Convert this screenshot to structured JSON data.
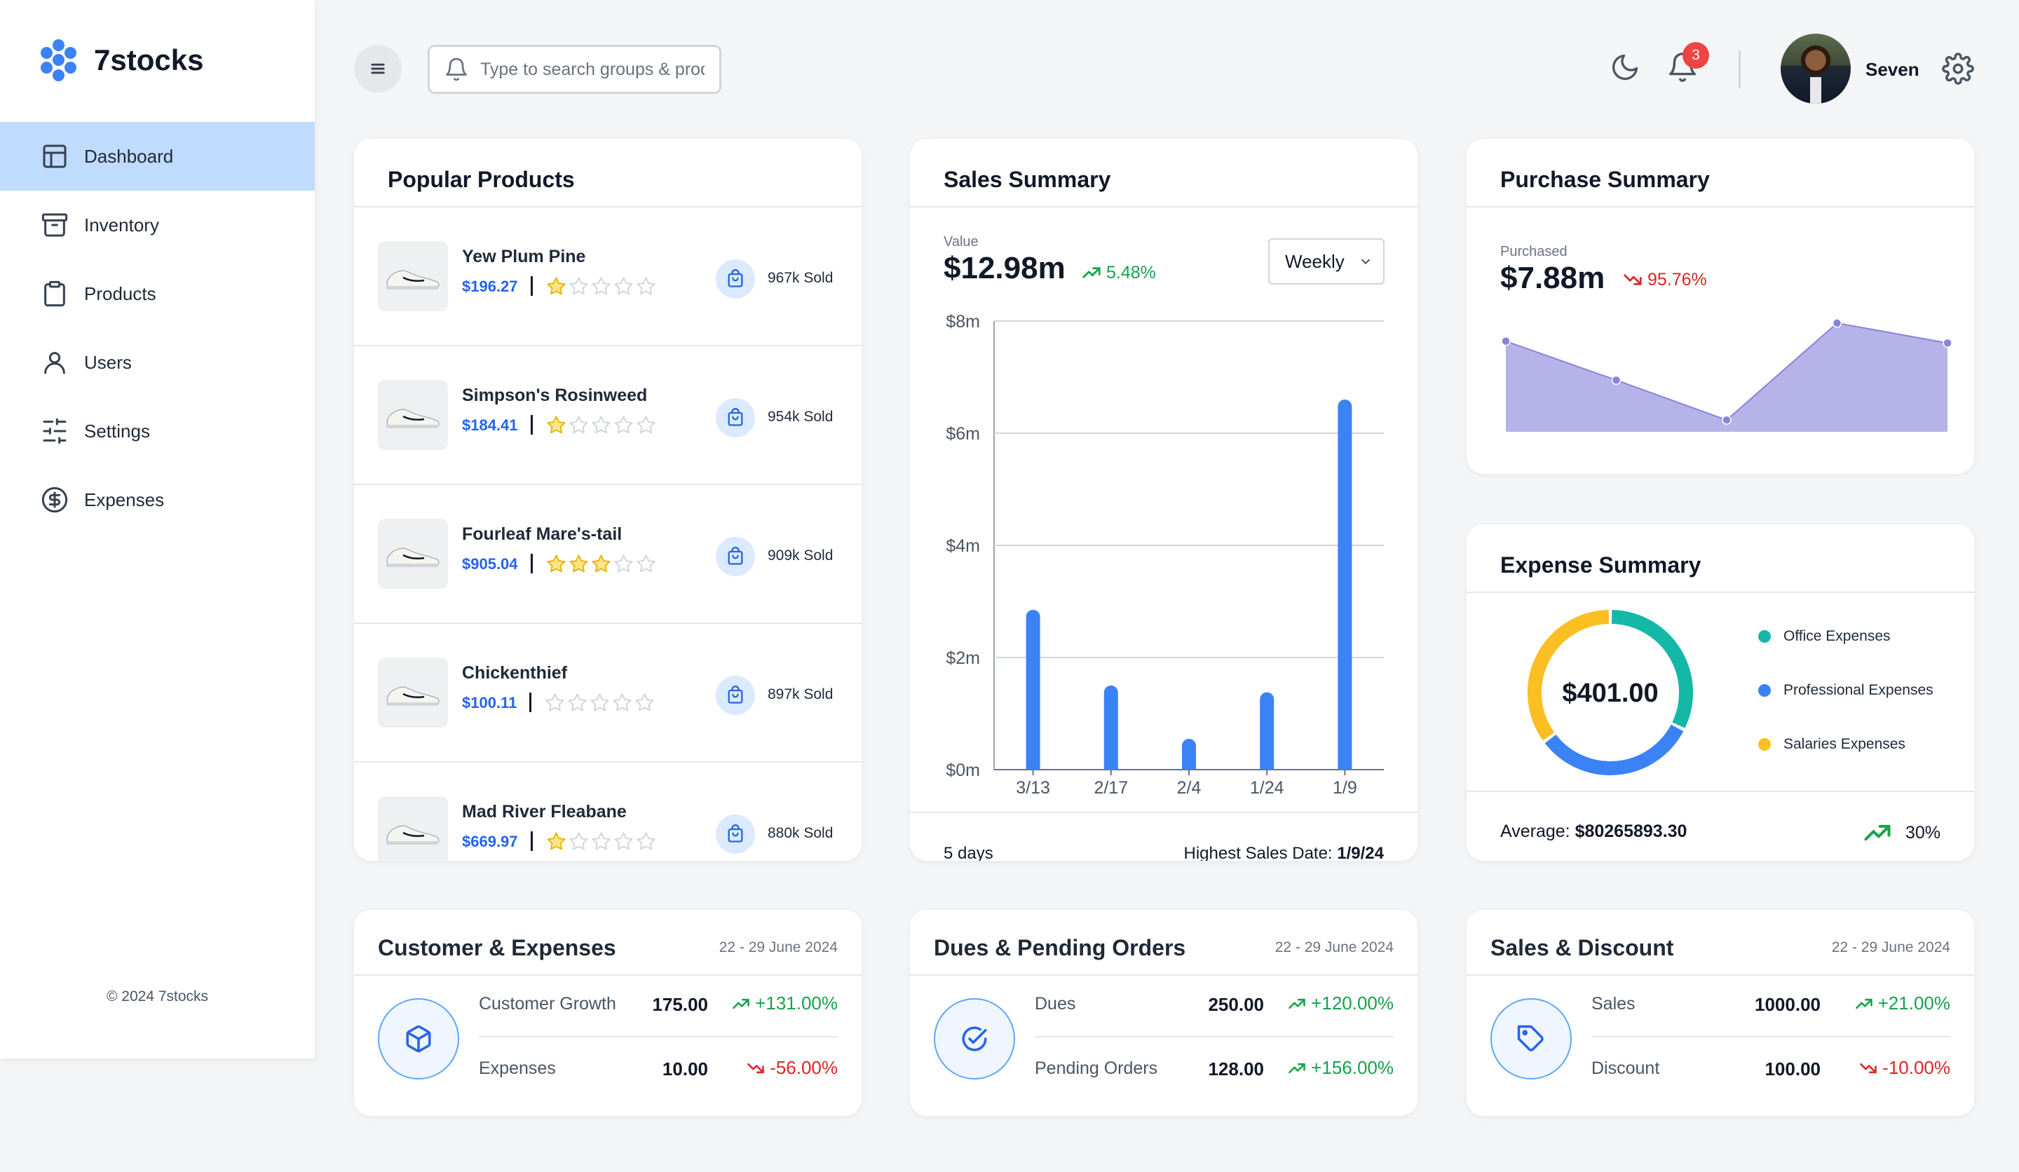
{
  "app": {
    "name": "7stocks",
    "copyright": "© 2024 7stocks"
  },
  "sidebar": {
    "items": [
      {
        "label": "Dashboard",
        "icon": "layout-icon",
        "active": true
      },
      {
        "label": "Inventory",
        "icon": "archive-icon"
      },
      {
        "label": "Products",
        "icon": "clipboard-icon"
      },
      {
        "label": "Users",
        "icon": "user-icon"
      },
      {
        "label": "Settings",
        "icon": "sliders-icon"
      },
      {
        "label": "Expenses",
        "icon": "dollar-circle-icon"
      }
    ]
  },
  "topbar": {
    "search_placeholder": "Type to search groups & products",
    "notification_count": "3",
    "user_name": "Seven"
  },
  "popular_products": {
    "title": "Popular Products",
    "items": [
      {
        "name": "Yew Plum Pine",
        "price": "$196.27",
        "rating": 1,
        "sold": "967k Sold"
      },
      {
        "name": "Simpson's Rosinweed",
        "price": "$184.41",
        "rating": 1,
        "sold": "954k Sold"
      },
      {
        "name": "Fourleaf Mare's-tail",
        "price": "$905.04",
        "rating": 3,
        "sold": "909k Sold"
      },
      {
        "name": "Chickenthief",
        "price": "$100.11",
        "rating": 0,
        "sold": "897k Sold"
      },
      {
        "name": "Mad River Fleabane",
        "price": "$669.97",
        "rating": 1,
        "sold": "880k Sold"
      }
    ]
  },
  "sales_summary": {
    "title": "Sales Summary",
    "value_label": "Value",
    "value": "$12.98m",
    "change": "5.48%",
    "period": "Weekly",
    "footer_days": "5 days",
    "footer_highest_label": "Highest Sales Date:",
    "footer_highest_value": "1/9/24"
  },
  "purchase_summary": {
    "title": "Purchase Summary",
    "label": "Purchased",
    "value": "$7.88m",
    "change": "95.76%"
  },
  "expense_summary": {
    "title": "Expense Summary",
    "total": "$401.00",
    "legend": [
      {
        "label": "Office Expenses",
        "color": "#14b8a6"
      },
      {
        "label": "Professional Expenses",
        "color": "#3b82f6"
      },
      {
        "label": "Salaries Expenses",
        "color": "#fbbf24"
      }
    ],
    "average_label": "Average:",
    "average_value": "$80265893.30",
    "average_change": "30%"
  },
  "customer_expenses": {
    "title": "Customer & Expenses",
    "date": "22 - 29 June 2024",
    "rows": [
      {
        "label": "Customer Growth",
        "value": "175.00",
        "change": "+131.00%",
        "trend": "up"
      },
      {
        "label": "Expenses",
        "value": "10.00",
        "change": "-56.00%",
        "trend": "down"
      }
    ]
  },
  "dues_pending": {
    "title": "Dues & Pending Orders",
    "date": "22 - 29 June 2024",
    "rows": [
      {
        "label": "Dues",
        "value": "250.00",
        "change": "+120.00%",
        "trend": "up"
      },
      {
        "label": "Pending Orders",
        "value": "128.00",
        "change": "+156.00%",
        "trend": "up"
      }
    ]
  },
  "sales_discount": {
    "title": "Sales & Discount",
    "date": "22 - 29 June 2024",
    "rows": [
      {
        "label": "Sales",
        "value": "1000.00",
        "change": "+21.00%",
        "trend": "up"
      },
      {
        "label": "Discount",
        "value": "100.00",
        "change": "-10.00%",
        "trend": "down"
      }
    ]
  },
  "chart_data": [
    {
      "type": "bar",
      "title": "Sales Summary",
      "categories": [
        "3/13",
        "2/17",
        "2/4",
        "1/24",
        "1/9"
      ],
      "values": [
        2.85,
        1.5,
        0.55,
        1.38,
        6.6
      ],
      "ylim": [
        0,
        8
      ],
      "yticks": [
        "$0m",
        "$2m",
        "$4m",
        "$6m",
        "$8m"
      ],
      "ytick_values": [
        0,
        2,
        4,
        6,
        8
      ],
      "color": "#3b82f6",
      "grid": true
    },
    {
      "type": "area",
      "title": "Purchase Summary",
      "values": [
        100,
        57,
        13,
        120,
        98
      ],
      "ylim": [
        0,
        130
      ],
      "color": "#8884d8",
      "grid": false
    },
    {
      "type": "pie",
      "title": "Expense Summary",
      "categories": [
        "Office Expenses",
        "Professional Expenses",
        "Salaries Expenses"
      ],
      "values": [
        130,
        130,
        141
      ],
      "colors": [
        "#14b8a6",
        "#3b82f6",
        "#fbbf24"
      ]
    }
  ]
}
